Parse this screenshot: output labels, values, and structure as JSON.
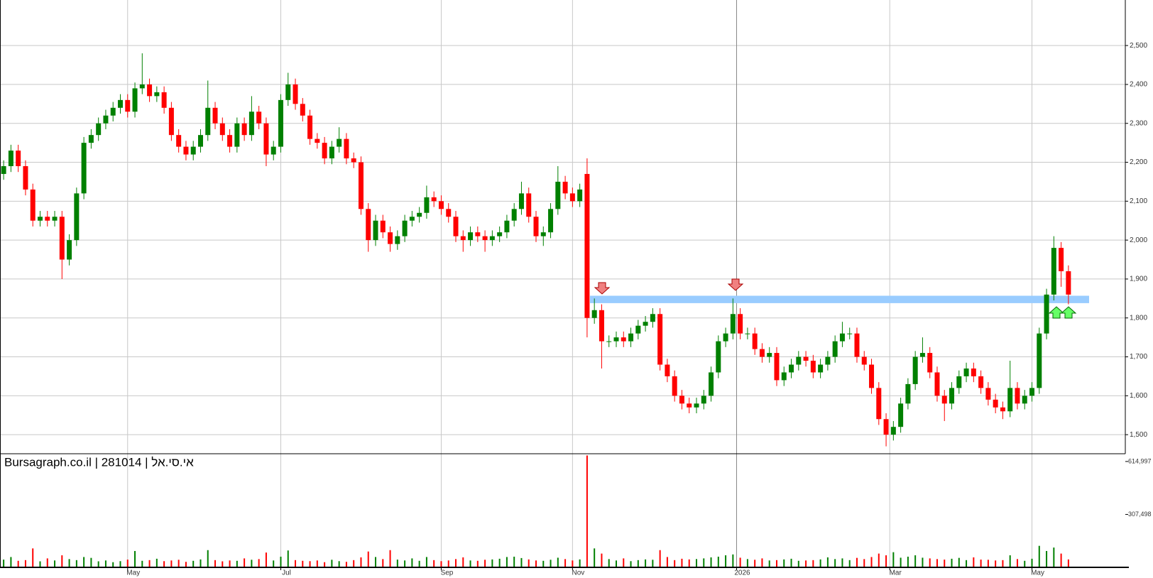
{
  "chart_data": [
    {
      "type": "candlestick",
      "title": "Bursagraph.co.il | 281014 | אי.סי.אל",
      "open": [
        2170,
        2190,
        2230,
        2190,
        2130,
        2050,
        2060,
        2050,
        2060,
        1950,
        2000,
        2120,
        2250,
        2270,
        2300,
        2320,
        2340,
        2360,
        2330,
        2390,
        2400,
        2370,
        2380,
        2340,
        2270,
        2240,
        2220,
        2240,
        2270,
        2340,
        2300,
        2270,
        2240,
        2300,
        2270,
        2330,
        2300,
        2220,
        2240,
        2360,
        2400,
        2350,
        2320,
        2260,
        2250,
        2210,
        2240,
        2260,
        2210,
        2200,
        2080,
        2000,
        2050,
        2020,
        1990,
        2010,
        2050,
        2060,
        2070,
        2110,
        2100,
        2080,
        2060,
        2010,
        2000,
        2020,
        2010,
        2000,
        2010,
        2020,
        2050,
        2080,
        2120,
        2060,
        2010,
        2020,
        2080,
        2150,
        2120,
        2100,
        2170,
        1800,
        1820,
        1740,
        1740,
        1750,
        1740,
        1760,
        1780,
        1790,
        1810,
        1680,
        1650,
        1600,
        1580,
        1570,
        1580,
        1600,
        1660,
        1740,
        1760,
        1810,
        1760,
        1760,
        1720,
        1700,
        1710,
        1640,
        1660,
        1680,
        1700,
        1690,
        1660,
        1680,
        1700,
        1740,
        1760,
        1760,
        1700,
        1680,
        1620,
        1540,
        1500,
        1520,
        1580,
        1630,
        1700,
        1710,
        1660,
        1600,
        1580,
        1620,
        1650,
        1670,
        1650,
        1620,
        1590,
        1570,
        1560,
        1620,
        1580,
        1600,
        1620,
        1760,
        1860,
        1980,
        1920
      ],
      "high": [
        2205,
        2245,
        2245,
        2205,
        2145,
        2075,
        2075,
        2075,
        2075,
        2015,
        2135,
        2265,
        2285,
        2315,
        2335,
        2355,
        2375,
        2375,
        2405,
        2480,
        2415,
        2395,
        2395,
        2355,
        2285,
        2255,
        2255,
        2285,
        2410,
        2355,
        2315,
        2285,
        2315,
        2315,
        2370,
        2345,
        2315,
        2255,
        2375,
        2430,
        2415,
        2365,
        2335,
        2275,
        2265,
        2255,
        2290,
        2275,
        2225,
        2215,
        2095,
        2065,
        2065,
        2035,
        2025,
        2065,
        2075,
        2085,
        2140,
        2125,
        2115,
        2095,
        2075,
        2025,
        2035,
        2035,
        2025,
        2025,
        2035,
        2065,
        2095,
        2150,
        2135,
        2075,
        2035,
        2095,
        2190,
        2165,
        2135,
        2145,
        2210,
        1850,
        1835,
        1755,
        1765,
        1765,
        1775,
        1795,
        1805,
        1825,
        1825,
        1695,
        1665,
        1615,
        1595,
        1595,
        1615,
        1675,
        1755,
        1775,
        1850,
        1825,
        1775,
        1775,
        1735,
        1725,
        1725,
        1675,
        1695,
        1715,
        1715,
        1705,
        1695,
        1715,
        1755,
        1790,
        1775,
        1775,
        1715,
        1695,
        1635,
        1555,
        1535,
        1595,
        1645,
        1715,
        1750,
        1725,
        1675,
        1615,
        1635,
        1665,
        1685,
        1685,
        1665,
        1635,
        1605,
        1585,
        1690,
        1635,
        1615,
        1635,
        1775,
        1875,
        2010,
        1995,
        1935
      ],
      "low": [
        2155,
        2175,
        2175,
        2115,
        2035,
        2035,
        2035,
        2035,
        1900,
        1935,
        1985,
        2105,
        2235,
        2255,
        2285,
        2305,
        2325,
        2315,
        2315,
        2375,
        2355,
        2355,
        2325,
        2255,
        2225,
        2205,
        2205,
        2225,
        2255,
        2285,
        2255,
        2225,
        2225,
        2255,
        2255,
        2285,
        2190,
        2205,
        2225,
        2345,
        2335,
        2305,
        2245,
        2235,
        2195,
        2195,
        2225,
        2195,
        2185,
        2065,
        1970,
        1985,
        2005,
        1970,
        1975,
        1995,
        2035,
        2045,
        2055,
        2085,
        2065,
        2045,
        1995,
        1970,
        1985,
        1995,
        1970,
        1985,
        1995,
        2005,
        2035,
        2065,
        2045,
        1995,
        1985,
        2005,
        2065,
        2105,
        2085,
        2085,
        1750,
        1785,
        1670,
        1725,
        1725,
        1725,
        1725,
        1745,
        1765,
        1775,
        1665,
        1635,
        1585,
        1565,
        1555,
        1555,
        1565,
        1585,
        1645,
        1725,
        1745,
        1745,
        1745,
        1705,
        1685,
        1685,
        1625,
        1625,
        1645,
        1665,
        1675,
        1645,
        1645,
        1665,
        1685,
        1725,
        1745,
        1685,
        1665,
        1605,
        1525,
        1470,
        1485,
        1505,
        1565,
        1615,
        1685,
        1645,
        1585,
        1535,
        1565,
        1605,
        1635,
        1635,
        1605,
        1575,
        1555,
        1540,
        1545,
        1565,
        1565,
        1585,
        1605,
        1745,
        1845,
        1880,
        1835
      ],
      "close": [
        2190,
        2230,
        2190,
        2130,
        2050,
        2060,
        2050,
        2060,
        1950,
        2000,
        2120,
        2250,
        2270,
        2300,
        2320,
        2340,
        2360,
        2330,
        2390,
        2400,
        2370,
        2380,
        2340,
        2270,
        2240,
        2220,
        2240,
        2270,
        2340,
        2300,
        2270,
        2240,
        2300,
        2270,
        2330,
        2300,
        2220,
        2240,
        2360,
        2400,
        2350,
        2320,
        2260,
        2250,
        2210,
        2240,
        2260,
        2210,
        2200,
        2080,
        2000,
        2050,
        2020,
        1990,
        2010,
        2050,
        2060,
        2070,
        2110,
        2100,
        2080,
        2060,
        2010,
        2000,
        2020,
        2010,
        2000,
        2010,
        2020,
        2050,
        2080,
        2120,
        2060,
        2010,
        2020,
        2080,
        2150,
        2120,
        2100,
        2130,
        1800,
        1820,
        1740,
        1740,
        1750,
        1740,
        1760,
        1780,
        1790,
        1810,
        1680,
        1650,
        1600,
        1580,
        1570,
        1580,
        1600,
        1660,
        1740,
        1760,
        1810,
        1760,
        1760,
        1720,
        1700,
        1710,
        1640,
        1660,
        1680,
        1700,
        1690,
        1660,
        1680,
        1700,
        1740,
        1760,
        1760,
        1700,
        1680,
        1620,
        1540,
        1500,
        1520,
        1580,
        1630,
        1700,
        1710,
        1660,
        1600,
        1580,
        1620,
        1650,
        1670,
        1650,
        1620,
        1590,
        1570,
        1560,
        1620,
        1580,
        1600,
        1620,
        1760,
        1860,
        1980,
        1920,
        1860
      ],
      "up_color": "#008000",
      "down_color": "#ff0000",
      "xlim": [
        -0.5,
        153.8
      ],
      "xticks": [
        {
          "value": 17,
          "label": "May"
        },
        {
          "value": 38,
          "label": "Jul"
        },
        {
          "value": 60,
          "label": "Sep"
        },
        {
          "value": 78,
          "label": "Nov"
        },
        {
          "value": 100.5,
          "label": "2026"
        },
        {
          "value": 121.5,
          "label": "Mar"
        },
        {
          "value": 141,
          "label": "May"
        }
      ],
      "ylim": [
        1451,
        2617
      ],
      "yticks": [
        {
          "value": 1500,
          "label": "1,500"
        },
        {
          "value": 1600,
          "label": "1,600"
        },
        {
          "value": 1700,
          "label": "1,700"
        },
        {
          "value": 1800,
          "label": "1,800"
        },
        {
          "value": 1900,
          "label": "1,900"
        },
        {
          "value": 2000,
          "label": "2,000"
        },
        {
          "value": 2100,
          "label": "2,100"
        },
        {
          "value": 2200,
          "label": "2,200"
        },
        {
          "value": 2300,
          "label": "2,300"
        },
        {
          "value": 2400,
          "label": "2,400"
        },
        {
          "value": 2500,
          "label": "2,500"
        }
      ],
      "grid": true,
      "band": {
        "low": 1838,
        "high": 1857,
        "color": "#99ccff"
      }
    },
    {
      "type": "bar",
      "values": [
        45000,
        60000,
        38000,
        42000,
        110000,
        35000,
        52000,
        40000,
        70000,
        48000,
        42000,
        60000,
        55000,
        35000,
        40000,
        30000,
        36000,
        45000,
        95000,
        38000,
        42000,
        50000,
        36000,
        40000,
        44000,
        32000,
        38000,
        46000,
        100000,
        42000,
        35000,
        40000,
        38000,
        52000,
        44000,
        48000,
        86000,
        40000,
        62000,
        98000,
        42000,
        38000,
        36000,
        40000,
        30000,
        44000,
        36000,
        32000,
        42000,
        58000,
        92000,
        60000,
        48000,
        100000,
        45000,
        40000,
        52000,
        38000,
        60000,
        42000,
        36000,
        40000,
        48000,
        58000,
        40000,
        38000,
        44000,
        46000,
        50000,
        60000,
        62000,
        54000,
        46000,
        40000,
        38000,
        44000,
        56000,
        48000,
        40000,
        46000,
        650000,
        110000,
        80000,
        48000,
        40000,
        52000,
        36000,
        42000,
        46000,
        44000,
        100000,
        60000,
        42000,
        50000,
        46000,
        48000,
        52000,
        58000,
        62000,
        70000,
        75000,
        56000,
        48000,
        44000,
        52000,
        40000,
        42000,
        46000,
        50000,
        38000,
        40000,
        42000,
        46000,
        58000,
        48000,
        52000,
        42000,
        55000,
        48000,
        60000,
        80000,
        70000,
        88000,
        56000,
        62000,
        70000,
        56000,
        52000,
        48000,
        45000,
        50000,
        55000,
        42000,
        58000,
        45000,
        44000,
        40000,
        42000,
        70000,
        48000,
        38000,
        50000,
        125000,
        95000,
        115000,
        80000,
        46000
      ],
      "ylim": [
        0,
        660000
      ],
      "yticks": [
        {
          "value": 307498,
          "label": "307,498"
        },
        {
          "value": 614997,
          "label": "614,997"
        }
      ]
    }
  ]
}
